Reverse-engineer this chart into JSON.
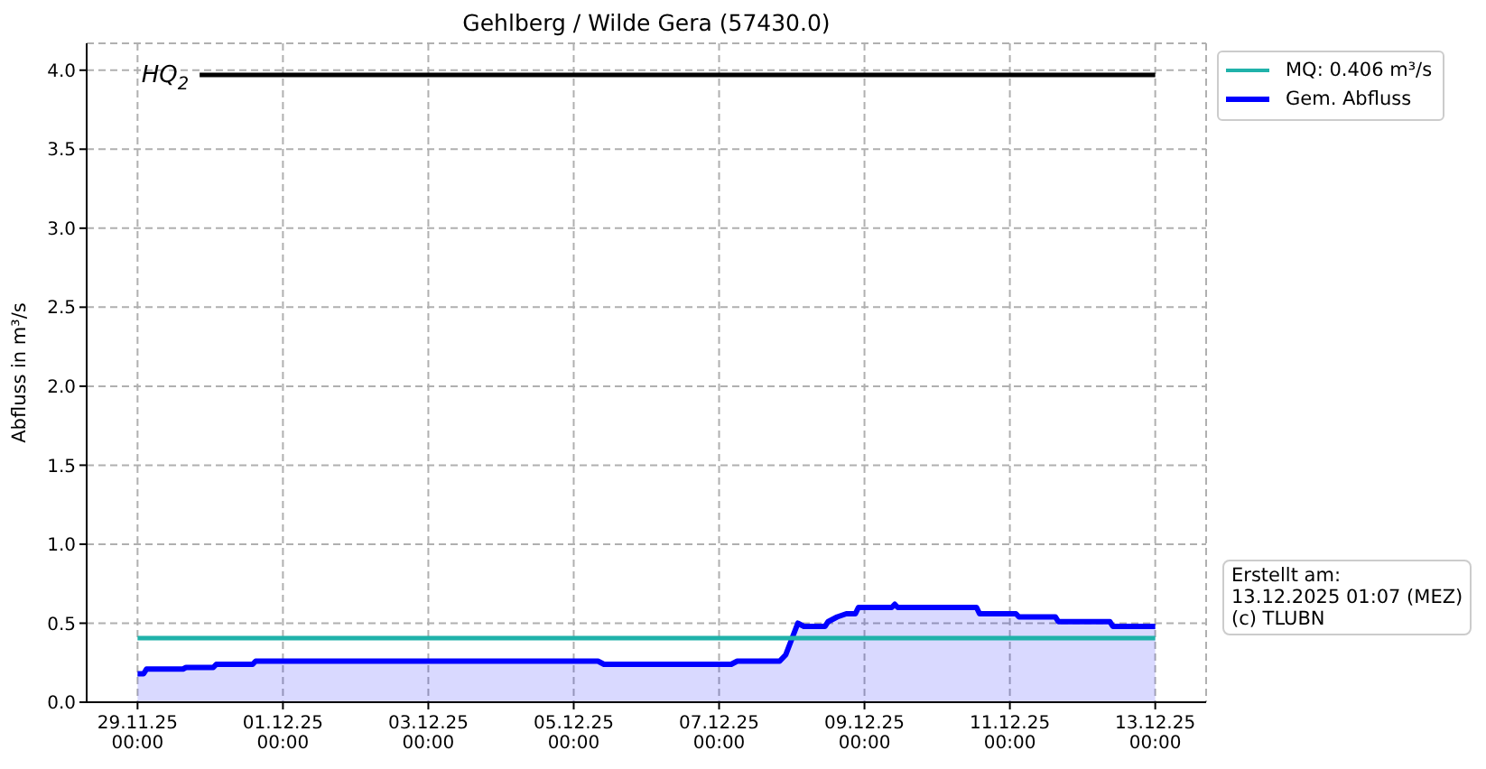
{
  "chart_data": {
    "type": "line",
    "title": "Gehlberg / Wilde Gera (57430.0)",
    "ylabel": "Abfluss in m³/s",
    "xlim": [
      "2025-11-28T07:12",
      "2025-12-13T16:48"
    ],
    "xticks": [
      {
        "value": "2025-11-29T00:00",
        "label": "29.11.25\n00:00"
      },
      {
        "value": "2025-12-01T00:00",
        "label": "01.12.25\n00:00"
      },
      {
        "value": "2025-12-03T00:00",
        "label": "03.12.25\n00:00"
      },
      {
        "value": "2025-12-05T00:00",
        "label": "05.12.25\n00:00"
      },
      {
        "value": "2025-12-07T00:00",
        "label": "07.12.25\n00:00"
      },
      {
        "value": "2025-12-09T00:00",
        "label": "09.12.25\n00:00"
      },
      {
        "value": "2025-12-11T00:00",
        "label": "11.12.25\n00:00"
      },
      {
        "value": "2025-12-13T00:00",
        "label": "13.12.25\n00:00"
      }
    ],
    "ylim": [
      0,
      4.17
    ],
    "yticks": [
      {
        "value": 0,
        "label": "0.0"
      },
      0.5,
      {
        "value": 1,
        "label": "1.0"
      },
      1.5,
      {
        "value": 2,
        "label": "2.0"
      },
      2.5,
      {
        "value": 3,
        "label": "3.0"
      },
      3.5,
      {
        "value": 4,
        "label": "4.0"
      }
    ],
    "grid": true,
    "legend": "top right",
    "series": [
      {
        "name": "MQ: 0.406 m³/s",
        "color": "#20b2aa",
        "x": [
          "2025-11-29T00:00",
          "2025-12-13T00:00"
        ],
        "values": [
          0.406,
          0.406
        ]
      },
      {
        "name": "Gem. Abfluss",
        "type": "area",
        "color": "#0000ff",
        "x": [
          "2025-11-29T00:00",
          "2025-11-29T02:00",
          "2025-11-29T03:00",
          "2025-11-29T15:00",
          "2025-11-29T16:00",
          "2025-11-30T01:00",
          "2025-11-30T02:00",
          "2025-11-30T14:00",
          "2025-11-30T15:00",
          "2025-12-05T08:00",
          "2025-12-05T10:00",
          "2025-12-07T04:00",
          "2025-12-07T06:00",
          "2025-12-07T20:00",
          "2025-12-07T22:00",
          "2025-12-08T00:00",
          "2025-12-08T02:00",
          "2025-12-08T04:00",
          "2025-12-08T11:00",
          "2025-12-08T12:00",
          "2025-12-08T15:00",
          "2025-12-08T18:00",
          "2025-12-08T21:00",
          "2025-12-08T22:00",
          "2025-12-09T09:00",
          "2025-12-09T10:00",
          "2025-12-09T11:00",
          "2025-12-10T13:00",
          "2025-12-10T14:00",
          "2025-12-11T02:00",
          "2025-12-11T03:00",
          "2025-12-11T15:00",
          "2025-12-11T16:00",
          "2025-12-12T09:00",
          "2025-12-12T10:00",
          "2025-12-13T00:00"
        ],
        "values": [
          0.18,
          0.18,
          0.21,
          0.21,
          0.22,
          0.22,
          0.24,
          0.24,
          0.26,
          0.26,
          0.24,
          0.24,
          0.26,
          0.26,
          0.3,
          0.4,
          0.5,
          0.48,
          0.48,
          0.51,
          0.54,
          0.56,
          0.56,
          0.6,
          0.6,
          0.62,
          0.6,
          0.6,
          0.56,
          0.56,
          0.54,
          0.54,
          0.51,
          0.51,
          0.48,
          0.48
        ]
      },
      {
        "color": "#000000",
        "x": [
          "2025-11-29T20:30",
          "2025-12-13T00:00"
        ],
        "values": [
          3.97,
          3.97
        ]
      }
    ],
    "annotations": [
      {
        "text": "HQ$_{2}$",
        "x": "2025-11-29T20:30",
        "y": 3.97
      },
      "Erstellt am:\n13.12.2025 01:07 (MEZ)\n(c) TLUBN"
    ]
  }
}
